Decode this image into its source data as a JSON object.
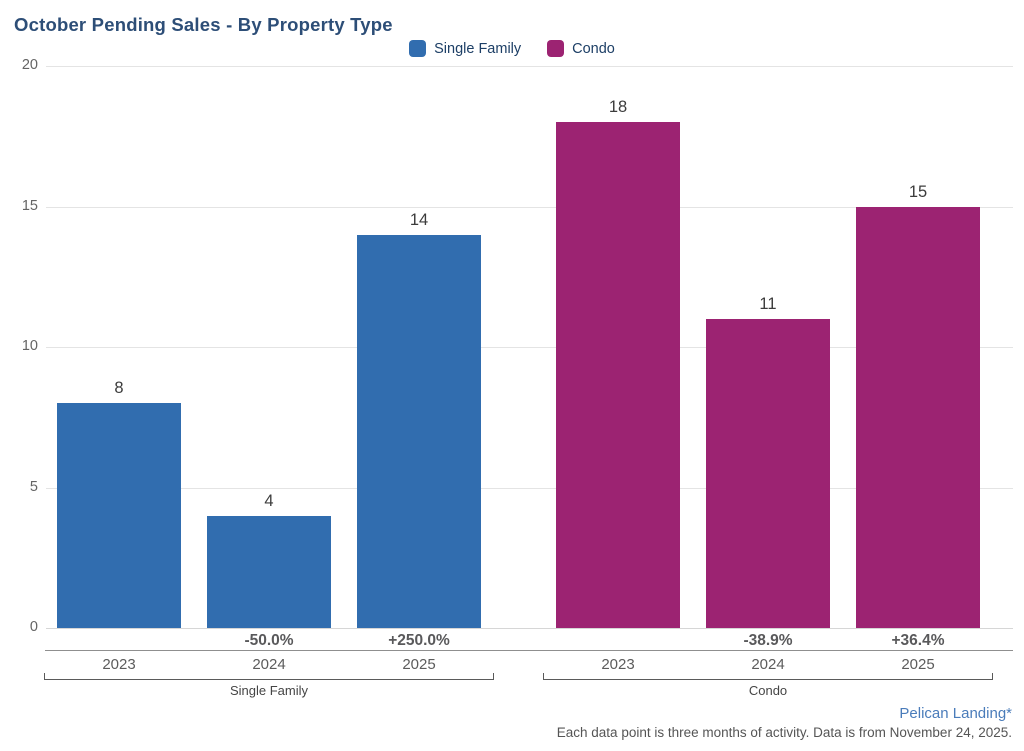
{
  "title": "October Pending Sales - By Property Type",
  "legend": {
    "items": [
      {
        "label": "Single Family",
        "color": "#316daf"
      },
      {
        "label": "Condo",
        "color": "#9c2372"
      }
    ]
  },
  "chart_data": {
    "type": "bar",
    "title": "October Pending Sales - By Property Type",
    "categories": [
      "2023",
      "2024",
      "2025"
    ],
    "groups": [
      {
        "name": "Single Family",
        "color": "#316daf",
        "values": [
          8,
          4,
          14
        ],
        "pct_change": [
          null,
          "-50.0%",
          "+250.0%"
        ]
      },
      {
        "name": "Condo",
        "color": "#9c2372",
        "values": [
          18,
          11,
          15
        ],
        "pct_change": [
          null,
          "-38.9%",
          "+36.4%"
        ]
      }
    ],
    "ylim": [
      0,
      20
    ],
    "yticks": [
      0,
      5,
      10,
      15,
      20
    ],
    "grid": true,
    "legend_position": "top-center"
  },
  "footer": {
    "link": "Pelican Landing*",
    "note": "Each data point is three months of activity. Data is from November 24, 2025."
  }
}
